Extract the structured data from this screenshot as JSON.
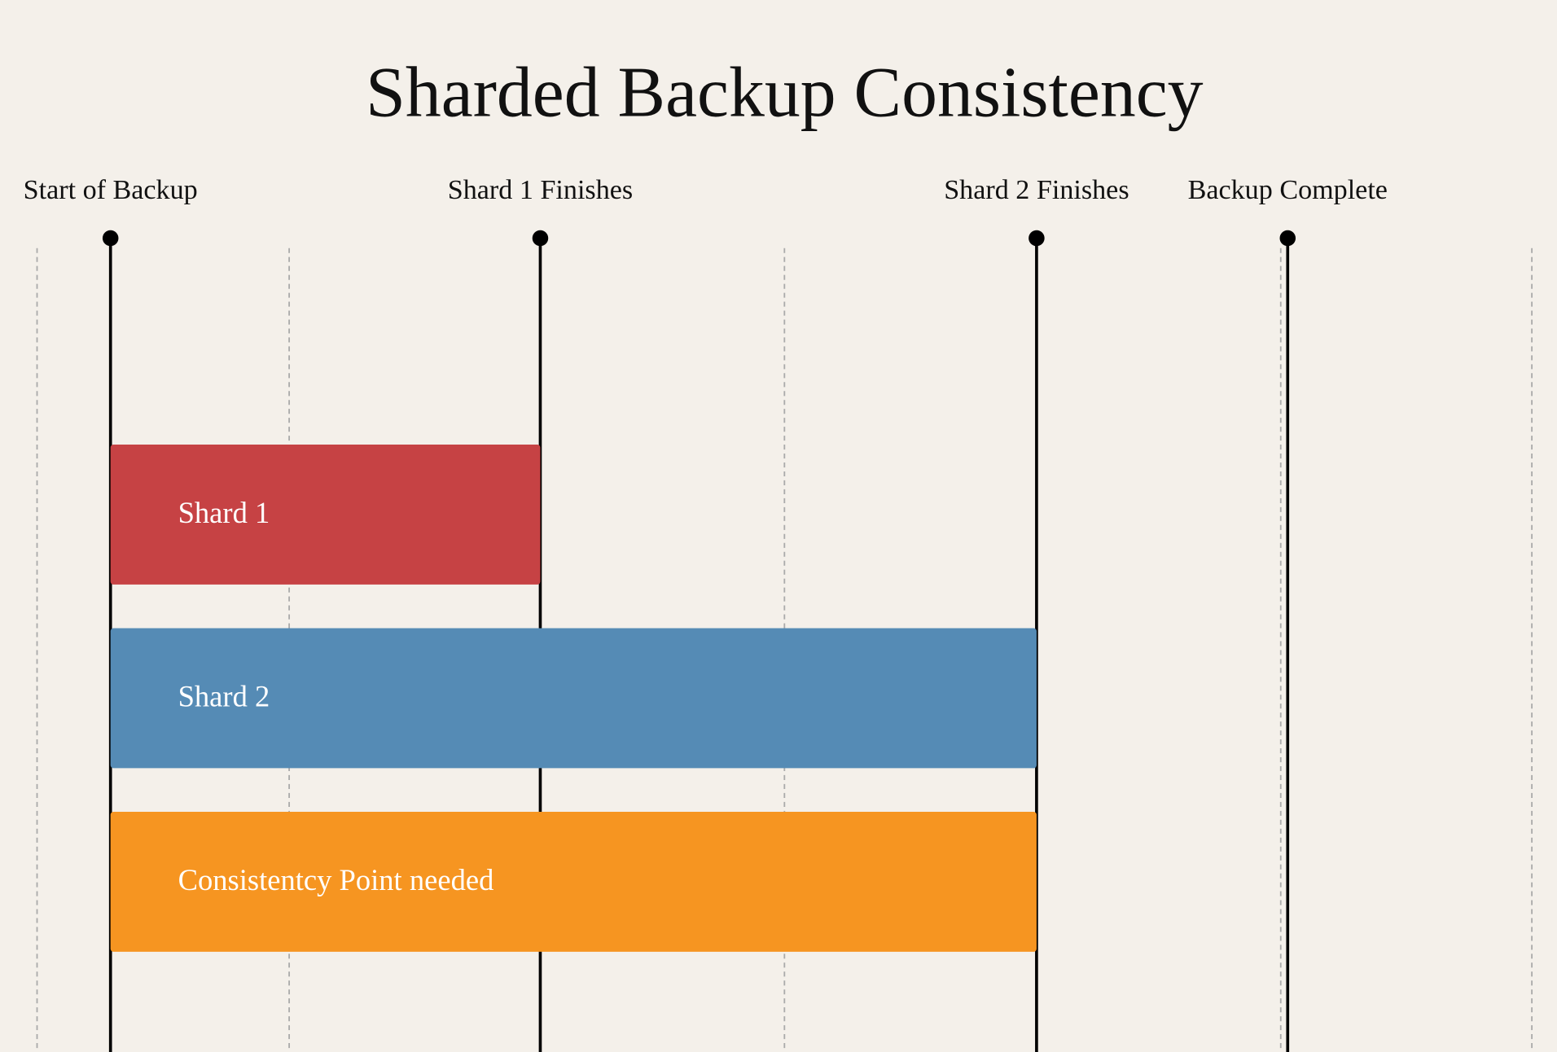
{
  "title": "Sharded Backup Consistency",
  "milestones": [
    {
      "label": "Start of Backup"
    },
    {
      "label": "Shard 1 Finishes"
    },
    {
      "label": "Shard 2 Finishes"
    },
    {
      "label": "Backup Complete"
    }
  ],
  "bars": [
    {
      "label": "Shard 1",
      "color": "#c64244"
    },
    {
      "label": "Shard 2",
      "color": "#558bb5"
    },
    {
      "label": "Consistentcy Point needed",
      "color": "#f69521"
    }
  ]
}
